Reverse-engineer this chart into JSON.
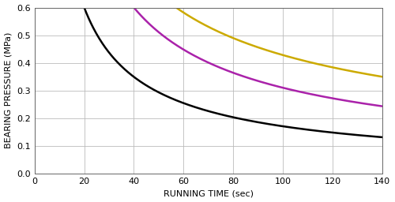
{
  "xlabel": "RUNNING TIME (sec)",
  "ylabel": "BEARING PRESSURE (MPa)",
  "xlim": [
    0,
    140
  ],
  "ylim": [
    0.0,
    0.6
  ],
  "xticks": [
    0,
    20,
    40,
    60,
    80,
    100,
    120,
    140
  ],
  "yticks": [
    0.0,
    0.1,
    0.2,
    0.3,
    0.4,
    0.5,
    0.6
  ],
  "curves": [
    {
      "color": "#000000",
      "x_start": 20,
      "x0": 20,
      "y0": 0.6,
      "power": 0.78
    },
    {
      "color": "#aa22aa",
      "x_start": 40,
      "x0": 40,
      "y0": 0.6,
      "power": 0.72
    },
    {
      "color": "#ccaa00",
      "x_start": 57,
      "x0": 57,
      "y0": 0.6,
      "power": 0.6
    }
  ],
  "background_color": "#ffffff",
  "grid_color": "#bbbbbb",
  "linewidth": 1.8,
  "xlabel_fontsize": 8,
  "ylabel_fontsize": 8,
  "tick_fontsize": 8
}
